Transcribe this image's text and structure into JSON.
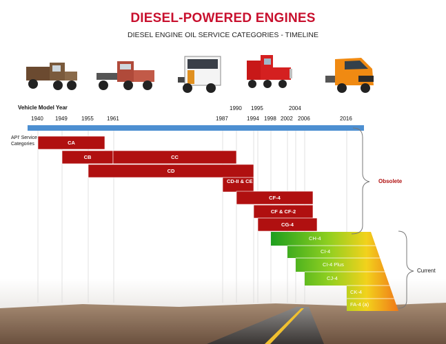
{
  "title": "DIESEL-POWERED ENGINES",
  "subtitle": "DIESEL ENGINE OIL SERVICE CATEGORIES - TIMELINE",
  "axis_label": "Vehicle Model Year",
  "row_header": "API' Service\nCategories",
  "years_lower": [
    "1940",
    "1949",
    "1955",
    "1961",
    "1987",
    "1994",
    "1998",
    "2002",
    "2006",
    "2016"
  ],
  "years_upper": [
    "1990",
    "1995",
    "2004"
  ],
  "obsolete_categories": [
    "CA",
    "CB",
    "CC",
    "CD",
    "CD-II & CE",
    "CF-4",
    "CF & CF-2",
    "CG-4"
  ],
  "current_categories": [
    "CH-4",
    "CI-4",
    "CI-4 Plus",
    "CJ-4",
    "CK-4",
    "FA-4 (a)"
  ],
  "group_obsolete": "Obsolete",
  "group_current": "Current",
  "colors": {
    "title": "#c8102e",
    "timeline": "#4d8fd1",
    "obsolete_bar": "#b01010",
    "current_green": "#1e9e1e",
    "current_orange": "#f07818"
  }
}
